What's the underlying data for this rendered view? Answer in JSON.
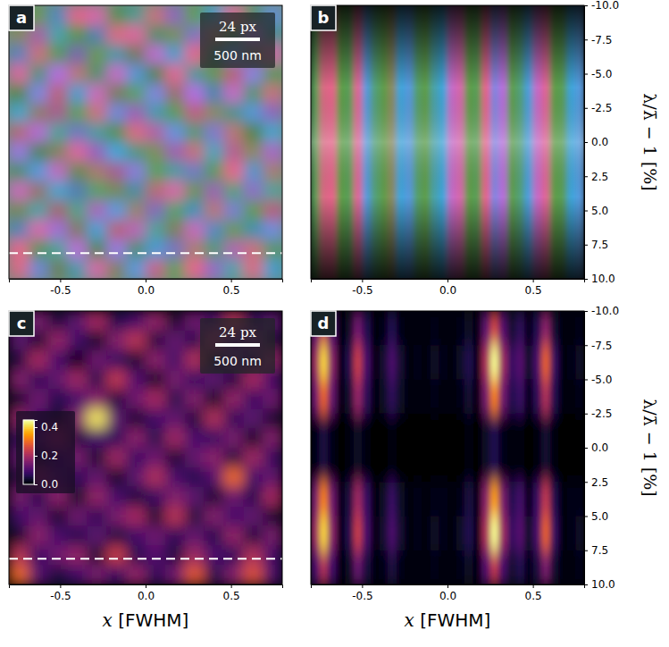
{
  "chart_data": [
    {
      "type": "heatmap",
      "panel": "a",
      "xlim": [
        -0.8,
        0.8
      ],
      "ylim": [
        -0.8,
        0.8
      ],
      "xticks": [
        -0.5,
        {
          "value": 0,
          "label": "0.0"
        },
        0.5
      ],
      "tick_labels": "x",
      "scale_bar": {
        "pixels": "24 px",
        "length": "500 nm"
      },
      "cut_y": -0.65,
      "phase_lim": [
        0,
        360
      ],
      "phase": [
        [
          120,
          80,
          200,
          0,
          330,
          100,
          140,
          20,
          260,
          90,
          180,
          350,
          110,
          210
        ],
        [
          60,
          300,
          150,
          90,
          200,
          10,
          340,
          120,
          70,
          240,
          30,
          100,
          280,
          150
        ],
        [
          210,
          20,
          100,
          250,
          80,
          160,
          60,
          290,
          180,
          0,
          130,
          220,
          50,
          330
        ],
        [
          340,
          130,
          270,
          30,
          120,
          300,
          200,
          90,
          350,
          150,
          80,
          10,
          240,
          100
        ],
        [
          90,
          230,
          10,
          180,
          310,
          60,
          110,
          230,
          40,
          270,
          190,
          300,
          120,
          20
        ],
        [
          170,
          50,
          320,
          100,
          20,
          220,
          280,
          160,
          100,
          350,
          60,
          140,
          200,
          260
        ],
        [
          20,
          280,
          140,
          230,
          150,
          90,
          10,
          310,
          210,
          120,
          240,
          30,
          90,
          170
        ],
        [
          250,
          110,
          60,
          340,
          270,
          180,
          130,
          70,
          290,
          20,
          160,
          330,
          60,
          280
        ],
        [
          120,
          200,
          300,
          80,
          40,
          320,
          240,
          100,
          150,
          230,
          100,
          0,
          190,
          40
        ],
        [
          310,
          40,
          170,
          210,
          110,
          70,
          160,
          20,
          330,
          80,
          280,
          120,
          260,
          140
        ],
        [
          70,
          150,
          20,
          130,
          290,
          200,
          50,
          250,
          110,
          180,
          30,
          230,
          90,
          350
        ],
        [
          200,
          330,
          260,
          50,
          180,
          10,
          300,
          140,
          60,
          310,
          200,
          80,
          170,
          220
        ],
        [
          0,
          100,
          140,
          280,
          90,
          250,
          120,
          190,
          240,
          40,
          120,
          300,
          20,
          110
        ],
        [
          10,
          220,
          70,
          160,
          330,
          60,
          200,
          350,
          100,
          0,
          260,
          150,
          10,
          180
        ]
      ]
    },
    {
      "type": "heatmap",
      "panel": "b",
      "xlim": [
        -0.8,
        0.8
      ],
      "ylim": [
        10,
        -10
      ],
      "xticks": [
        -0.5,
        {
          "value": 0,
          "label": "0.0"
        },
        0.5
      ],
      "yticks": [
        {
          "value": -10,
          "label": "-10.0"
        },
        -7.5,
        {
          "value": -5,
          "label": "-5.0"
        },
        -2.5,
        {
          "value": 0,
          "label": "0.0"
        },
        2.5,
        {
          "value": 5,
          "label": "5.0"
        },
        7.5,
        {
          "value": 10,
          "label": "10.0"
        }
      ],
      "y_label": "λ/λ̄ − 1 [%]",
      "phase_lim": [
        0,
        360
      ],
      "phase": [
        100,
        10,
        0,
        90,
        100,
        350,
        200,
        120,
        90,
        60,
        180,
        200,
        110,
        90,
        150,
        180,
        300,
        330,
        90,
        100,
        0,
        230,
        280,
        90,
        120,
        190,
        300,
        350,
        90,
        100,
        180,
        200
      ]
    },
    {
      "type": "heatmap",
      "panel": "c",
      "xlim": [
        -0.8,
        0.8
      ],
      "ylim": [
        -0.8,
        0.8
      ],
      "xticks": [
        -0.5,
        {
          "value": 0,
          "label": "0.0"
        },
        0.5
      ],
      "tick_labels": "x",
      "x_label": "x [FWHM]",
      "scale_bar": {
        "pixels": "24 px",
        "length": "500 nm"
      },
      "cut_y": -0.65,
      "colorbar_lim": [
        0,
        0.45
      ],
      "colorbar_ticks": [
        {
          "value": 0,
          "label": "0.0"
        },
        {
          "value": 0.2,
          "label": "0.2"
        },
        {
          "value": 0.4,
          "label": "0.4"
        }
      ],
      "cells": [
        [
          0.08,
          0.15,
          0.05,
          0.12,
          0.2,
          0.06,
          0.1,
          0.18,
          0.04,
          0.14,
          0.09,
          0.22,
          0.07,
          0.12
        ],
        [
          0.12,
          0.04,
          0.18,
          0.09,
          0.03,
          0.16,
          0.22,
          0.05,
          0.13,
          0.06,
          0.19,
          0.1,
          0.15,
          0.05
        ],
        [
          0.05,
          0.2,
          0.1,
          0.02,
          0.14,
          0.08,
          0.04,
          0.17,
          0.09,
          0.21,
          0.04,
          0.13,
          0.06,
          0.18
        ],
        [
          0.16,
          0.07,
          0.13,
          0.19,
          0.06,
          0.23,
          0.11,
          0.03,
          0.15,
          0.08,
          0.12,
          0.05,
          0.2,
          0.09
        ],
        [
          0.04,
          0.14,
          0.06,
          0.1,
          0.17,
          0.05,
          0.14,
          0.2,
          0.06,
          0.16,
          0.03,
          0.18,
          0.08,
          0.14
        ],
        [
          0.18,
          0.09,
          0.03,
          0.16,
          0.42,
          0.12,
          0.04,
          0.09,
          0.13,
          0.05,
          0.21,
          0.07,
          0.12,
          0.04
        ],
        [
          0.07,
          0.12,
          0.2,
          0.05,
          0.1,
          0.07,
          0.17,
          0.06,
          0.19,
          0.1,
          0.08,
          0.15,
          0.03,
          0.16
        ],
        [
          0.13,
          0.03,
          0.09,
          0.15,
          0.04,
          0.19,
          0.08,
          0.14,
          0.04,
          0.13,
          0.17,
          0.05,
          0.19,
          0.08
        ],
        [
          0.05,
          0.19,
          0.12,
          0.07,
          0.13,
          0.03,
          0.12,
          0.21,
          0.1,
          0.06,
          0.11,
          0.3,
          0.09,
          0.13
        ],
        [
          0.15,
          0.06,
          0.17,
          0.03,
          0.18,
          0.1,
          0.05,
          0.08,
          0.16,
          0.12,
          0.04,
          0.14,
          0.06,
          0.2
        ],
        [
          0.09,
          0.13,
          0.04,
          0.14,
          0.07,
          0.15,
          0.2,
          0.04,
          0.22,
          0.05,
          0.16,
          0.09,
          0.13,
          0.04
        ],
        [
          0.04,
          0.17,
          0.1,
          0.06,
          0.12,
          0.05,
          0.09,
          0.14,
          0.07,
          0.13,
          0.06,
          0.18,
          0.05,
          0.15
        ],
        [
          0.22,
          0.08,
          0.14,
          0.18,
          0.04,
          0.24,
          0.06,
          0.11,
          0.05,
          0.19,
          0.1,
          0.07,
          0.21,
          0.09
        ],
        [
          0.3,
          0.11,
          0.05,
          0.09,
          0.15,
          0.08,
          0.18,
          0.07,
          0.14,
          0.28,
          0.06,
          0.16,
          0.27,
          0.1
        ]
      ]
    },
    {
      "type": "heatmap",
      "panel": "d",
      "xlim": [
        -0.8,
        0.8
      ],
      "ylim": [
        10,
        -10
      ],
      "xticks": [
        -0.5,
        {
          "value": 0,
          "label": "0.0"
        },
        0.5
      ],
      "yticks": [
        {
          "value": -10,
          "label": "-10.0"
        },
        -7.5,
        {
          "value": -5,
          "label": "-5.0"
        },
        -2.5,
        {
          "value": 0,
          "label": "0.0"
        },
        2.5,
        {
          "value": 5,
          "label": "5.0"
        },
        7.5,
        {
          "value": 10,
          "label": "10.0"
        }
      ],
      "x_label": "x [FWHM]",
      "y_label": "λ/λ̄ − 1 [%]",
      "cells": [
        [
          0.11,
          0.23,
          0.1,
          0.01,
          0.03,
          0.14,
          0.06,
          0.01,
          0.02,
          0.06,
          0.02,
          0.01,
          0.01,
          0.01,
          0.02,
          0.01,
          0.01,
          0.02,
          0.03,
          0.01,
          0.12,
          0.25,
          0.11,
          0.04,
          0.07,
          0.02,
          0.06,
          0.17,
          0.04,
          0.01,
          0.01,
          0.02
        ],
        [
          0.19,
          0.4,
          0.17,
          0.02,
          0.06,
          0.24,
          0.1,
          0.01,
          0.04,
          0.1,
          0.04,
          0.01,
          0.02,
          0.01,
          0.03,
          0.02,
          0.01,
          0.03,
          0.06,
          0.02,
          0.21,
          0.44,
          0.19,
          0.08,
          0.11,
          0.03,
          0.1,
          0.29,
          0.08,
          0.01,
          0.02,
          0.03
        ],
        [
          0.14,
          0.29,
          0.13,
          0.01,
          0.04,
          0.18,
          0.07,
          0.01,
          0.03,
          0.07,
          0.03,
          0.01,
          0.01,
          0.01,
          0.02,
          0.01,
          0.01,
          0.02,
          0.04,
          0.01,
          0.15,
          0.32,
          0.14,
          0.06,
          0.08,
          0.02,
          0.07,
          0.21,
          0.06,
          0.01,
          0.01,
          0.02
        ],
        [
          0.02,
          0.05,
          0.02,
          0,
          0.01,
          0.03,
          0.01,
          0,
          0,
          0.01,
          0,
          0,
          0,
          0,
          0,
          0,
          0,
          0,
          0.01,
          0,
          0.03,
          0.06,
          0.02,
          0.01,
          0.01,
          0,
          0.01,
          0.04,
          0.01,
          0,
          0,
          0
        ],
        [
          0.02,
          0.05,
          0.02,
          0,
          0.01,
          0.03,
          0.01,
          0,
          0,
          0.01,
          0,
          0,
          0,
          0,
          0,
          0,
          0,
          0,
          0.01,
          0,
          0.03,
          0.06,
          0.02,
          0.01,
          0.01,
          0,
          0.01,
          0.04,
          0.01,
          0,
          0,
          0
        ],
        [
          0.15,
          0.32,
          0.14,
          0.02,
          0.05,
          0.19,
          0.08,
          0.01,
          0.03,
          0.08,
          0.03,
          0.01,
          0.02,
          0.01,
          0.02,
          0.02,
          0.01,
          0.02,
          0.05,
          0.02,
          0.17,
          0.35,
          0.15,
          0.06,
          0.09,
          0.02,
          0.08,
          0.23,
          0.06,
          0.01,
          0.02,
          0.02
        ],
        [
          0.19,
          0.4,
          0.17,
          0.02,
          0.06,
          0.24,
          0.1,
          0.01,
          0.04,
          0.1,
          0.04,
          0.01,
          0.02,
          0.01,
          0.03,
          0.02,
          0.01,
          0.03,
          0.06,
          0.02,
          0.21,
          0.44,
          0.19,
          0.08,
          0.11,
          0.03,
          0.1,
          0.29,
          0.08,
          0.01,
          0.02,
          0.03
        ],
        [
          0.1,
          0.21,
          0.09,
          0.01,
          0.03,
          0.13,
          0.05,
          0.01,
          0.02,
          0.05,
          0.02,
          0.01,
          0.01,
          0.01,
          0.02,
          0.01,
          0.01,
          0.02,
          0.03,
          0.01,
          0.11,
          0.23,
          0.1,
          0.04,
          0.06,
          0.02,
          0.05,
          0.15,
          0.04,
          0.01,
          0.01,
          0.02
        ]
      ]
    }
  ]
}
